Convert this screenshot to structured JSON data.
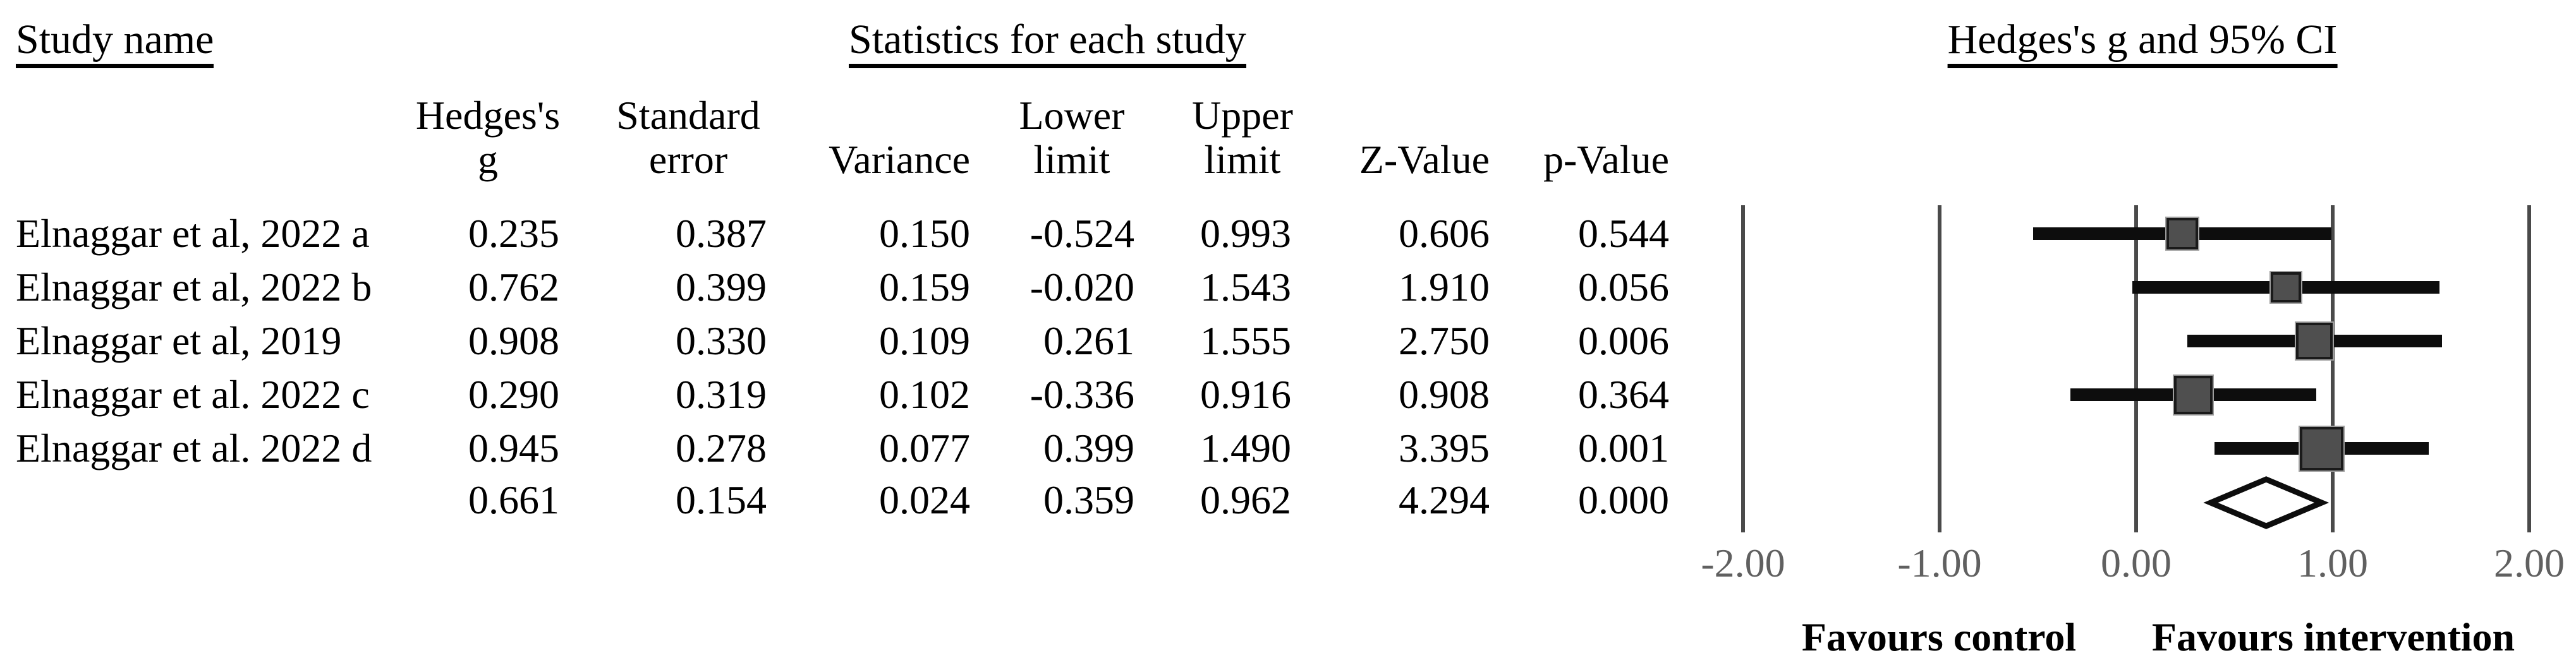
{
  "titles": {
    "study_column": "Study name",
    "statistics": "Statistics for each study",
    "plot": "Hedges's g and 95% CI"
  },
  "table": {
    "columns": [
      {
        "key": "g",
        "lines": [
          "Hedges's",
          "g"
        ]
      },
      {
        "key": "se",
        "lines": [
          "Standard",
          "error"
        ]
      },
      {
        "key": "var",
        "lines": [
          "Variance"
        ]
      },
      {
        "key": "ll",
        "lines": [
          "Lower",
          "limit"
        ]
      },
      {
        "key": "ul",
        "lines": [
          "Upper",
          "limit"
        ]
      },
      {
        "key": "z",
        "lines": [
          "Z-Value"
        ]
      },
      {
        "key": "p",
        "lines": [
          "p-Value"
        ]
      }
    ],
    "rows": [
      {
        "study": "Elnaggar et al, 2022 a",
        "g": "0.235",
        "se": "0.387",
        "var": "0.150",
        "ll": "-0.524",
        "ul": "0.993",
        "z": "0.606",
        "p": "0.544"
      },
      {
        "study": "Elnaggar et al, 2022 b",
        "g": "0.762",
        "se": "0.399",
        "var": "0.159",
        "ll": "-0.020",
        "ul": "1.543",
        "z": "1.910",
        "p": "0.056"
      },
      {
        "study": "Elnaggar et al, 2019",
        "g": "0.908",
        "se": "0.330",
        "var": "0.109",
        "ll": "0.261",
        "ul": "1.555",
        "z": "2.750",
        "p": "0.006"
      },
      {
        "study": "Elnaggar et al. 2022 c",
        "g": "0.290",
        "se": "0.319",
        "var": "0.102",
        "ll": "-0.336",
        "ul": "0.916",
        "z": "0.908",
        "p": "0.364"
      },
      {
        "study": "Elnaggar et al. 2022 d",
        "g": "0.945",
        "se": "0.278",
        "var": "0.077",
        "ll": "0.399",
        "ul": "1.490",
        "z": "3.395",
        "p": "0.001"
      },
      {
        "study": "",
        "g": "0.661",
        "se": "0.154",
        "var": "0.024",
        "ll": "0.359",
        "ul": "0.962",
        "z": "4.294",
        "p": "0.000"
      }
    ]
  },
  "chart_data": {
    "type": "forest",
    "title": "Hedges's g and 95% CI",
    "xlim": [
      -2,
      2
    ],
    "tick_values": [
      -2,
      -1,
      0,
      1,
      2
    ],
    "tick_labels": [
      "-2.00",
      "-1.00",
      "0.00",
      "1.00",
      "2.00"
    ],
    "grid": "vertical-gridlines-on",
    "studies": [
      {
        "name": "Elnaggar et al, 2022 a",
        "g": 0.235,
        "ll": -0.524,
        "ul": 0.993,
        "marker_size": 50
      },
      {
        "name": "Elnaggar et al, 2022 b",
        "g": 0.762,
        "ll": -0.02,
        "ul": 1.543,
        "marker_size": 48
      },
      {
        "name": "Elnaggar et al, 2019",
        "g": 0.908,
        "ll": 0.261,
        "ul": 1.555,
        "marker_size": 58
      },
      {
        "name": "Elnaggar et al. 2022 c",
        "g": 0.29,
        "ll": -0.336,
        "ul": 0.916,
        "marker_size": 61
      },
      {
        "name": "Elnaggar et al. 2022 d",
        "g": 0.945,
        "ll": 0.399,
        "ul": 1.49,
        "marker_size": 69
      }
    ],
    "summary": {
      "g": 0.661,
      "ll": 0.359,
      "ul": 0.962
    },
    "favours_left": "Favours control",
    "favours_right": "Favours intervention",
    "colors": {
      "marker_fill": "#4f4f4f",
      "marker_border": "#1a1a1a",
      "ci_line": "#0d0d0d",
      "gridline": "#4a4a4a",
      "tick_label": "#606060",
      "diamond_fill": "#ffffff",
      "diamond_border": "#0d0d0d",
      "text": "#000000"
    }
  }
}
